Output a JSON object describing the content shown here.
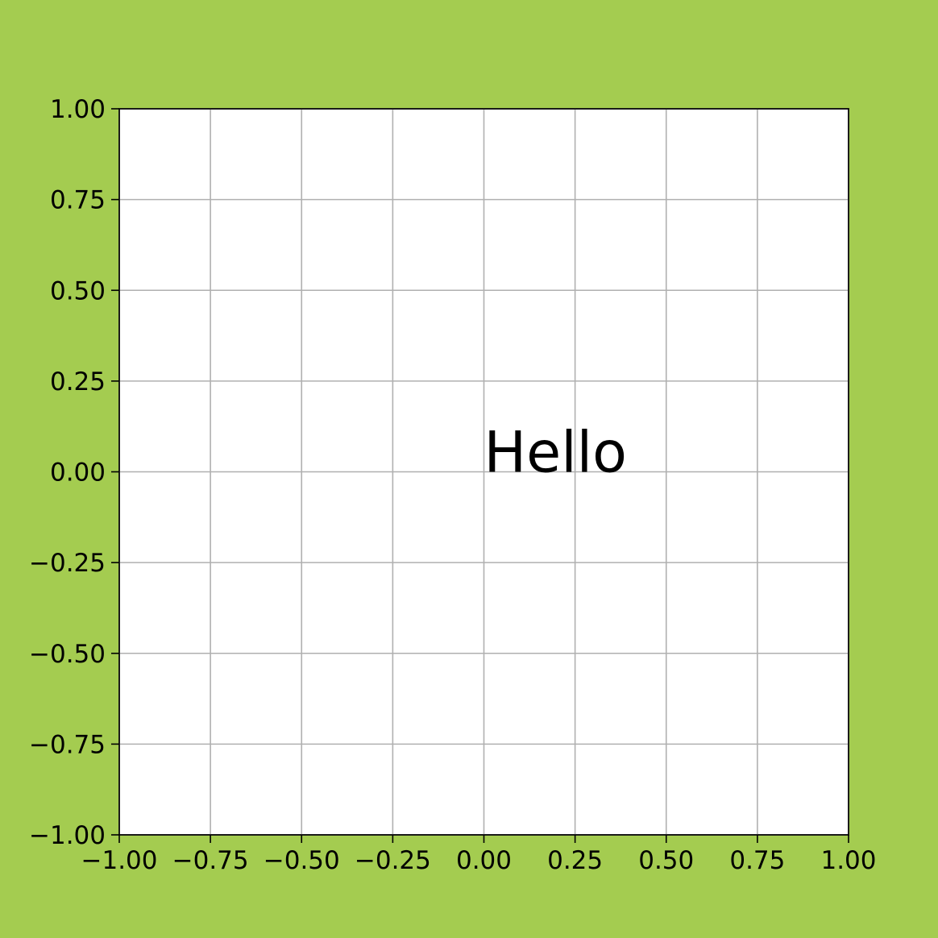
{
  "colors": {
    "figure_background": "#a4cc50",
    "axes_background": "#ffffff",
    "grid": "#b0b0b0",
    "text": "#000000"
  },
  "chart_data": {
    "type": "scatter",
    "title": "",
    "xlabel": "",
    "ylabel": "",
    "xlim": [
      -1.0,
      1.0
    ],
    "ylim": [
      -1.0,
      1.0
    ],
    "grid": true,
    "legend": null,
    "x_ticks": [
      -1.0,
      -0.75,
      -0.5,
      -0.25,
      0.0,
      0.25,
      0.5,
      0.75,
      1.0
    ],
    "y_ticks": [
      -1.0,
      -0.75,
      -0.5,
      -0.25,
      0.0,
      0.25,
      0.5,
      0.75,
      1.0
    ],
    "x_tick_labels": [
      "−1.00",
      "−0.75",
      "−0.50",
      "−0.25",
      "0.00",
      "0.25",
      "0.50",
      "0.75",
      "1.00"
    ],
    "y_tick_labels": [
      "−1.00",
      "−0.75",
      "−0.50",
      "−0.25",
      "0.00",
      "0.25",
      "0.50",
      "0.75",
      "1.00"
    ],
    "series": [],
    "annotations": [
      {
        "text": "Hello",
        "x": 0.0,
        "y": 0.0
      }
    ]
  }
}
